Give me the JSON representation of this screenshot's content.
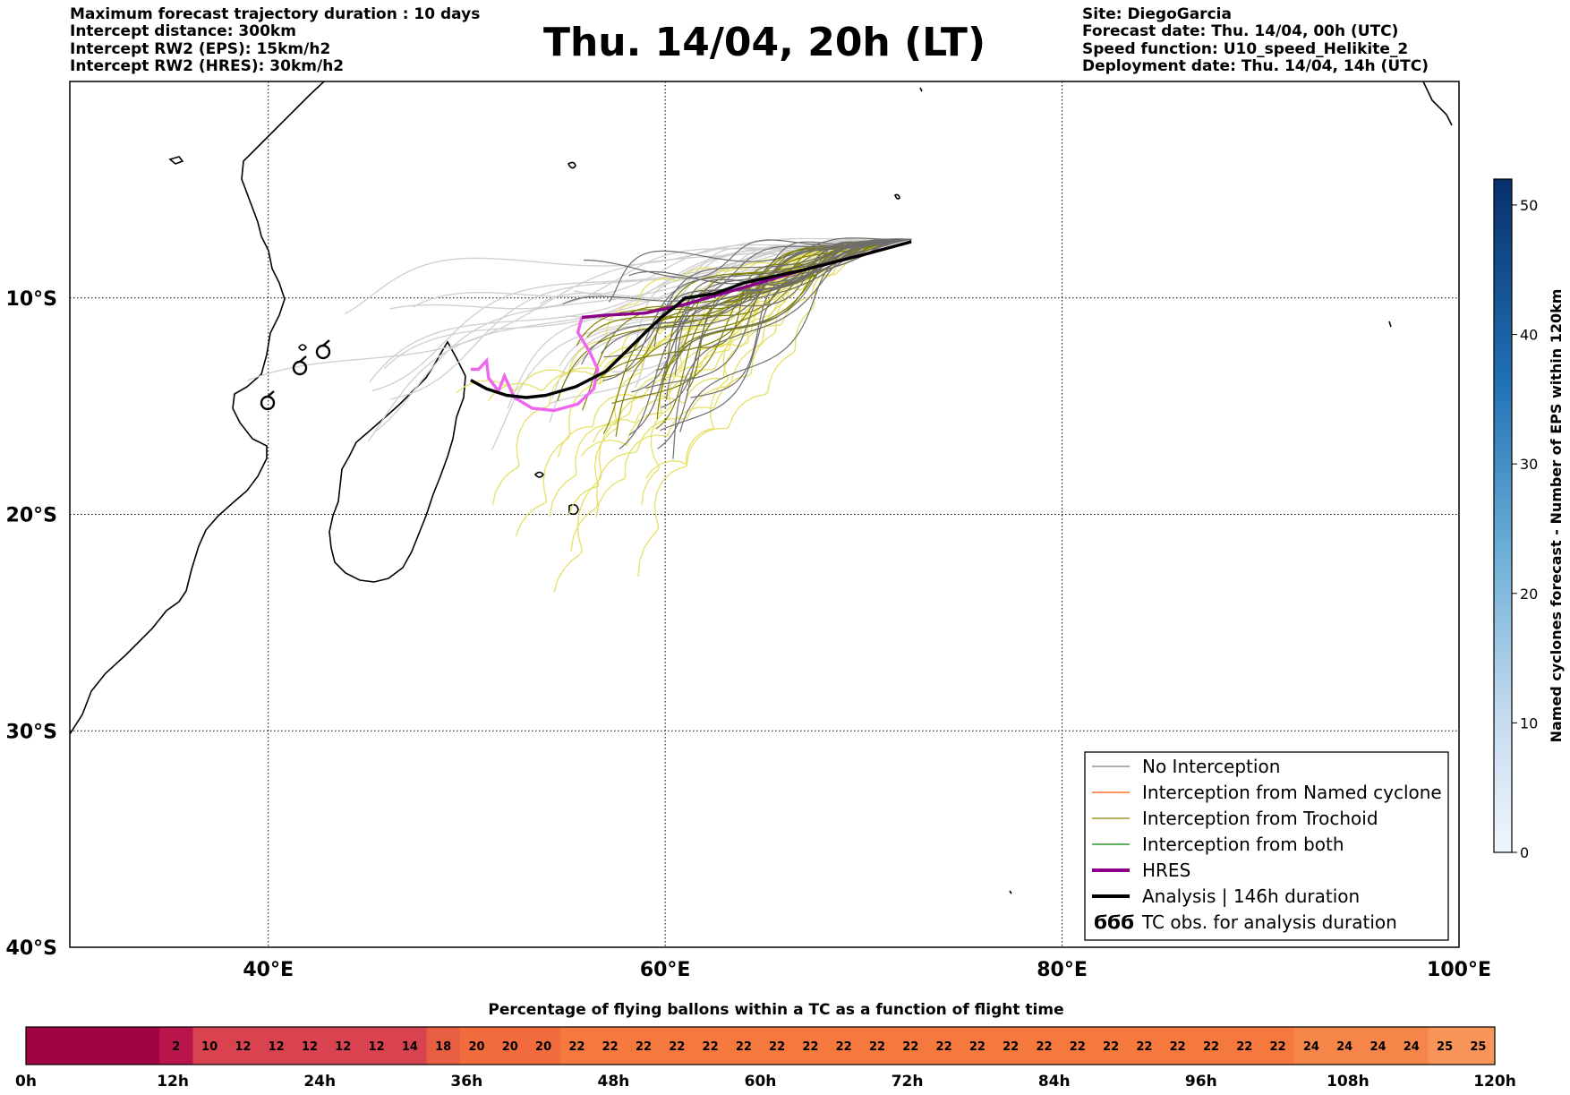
{
  "header_left": [
    "Maximum forecast trajectory duration : 10 days",
    "Intercept distance: 300km",
    "Intercept RW2 (EPS):  15km/h2",
    "Intercept RW2 (HRES): 30km/h2"
  ],
  "header_right": [
    "Site: DiegoGarcia",
    "Forecast date: Thu. 14/04, 00h (UTC)",
    "Speed function: U10_speed_Helikite_2",
    "Deployment date: Thu. 14/04, 14h (UTC)"
  ],
  "title": "Thu. 14/04, 20h (LT)",
  "map": {
    "lon_range": [
      30,
      100
    ],
    "lat_range": [
      -40,
      0
    ],
    "lon_ticks": [
      {
        "v": 40,
        "label": "40°E"
      },
      {
        "v": 60,
        "label": "60°E"
      },
      {
        "v": 80,
        "label": "80°E"
      },
      {
        "v": 100,
        "label": "100°E"
      }
    ],
    "lat_ticks": [
      {
        "v": -10,
        "label": "10°S"
      },
      {
        "v": -20,
        "label": "20°S"
      },
      {
        "v": -30,
        "label": "30°S"
      },
      {
        "v": -40,
        "label": "40°S"
      }
    ],
    "release_site": [
      72.4,
      -7.3
    ]
  },
  "legend": {
    "items": [
      {
        "label": "No Interception",
        "color": "#808080",
        "style": "thin"
      },
      {
        "label": "Interception from Named cyclone",
        "color": "#ff5500",
        "style": "thin"
      },
      {
        "label": "Interception from Trochoid",
        "color": "#808000",
        "style": "thin"
      },
      {
        "label": "Interception from both",
        "color": "#008000",
        "style": "thin"
      },
      {
        "label": "HRES",
        "color": "#8b008b",
        "style": "thick"
      },
      {
        "label": "Analysis | 146h duration",
        "color": "#000000",
        "style": "thick"
      },
      {
        "label": "TC obs. for analysis duration",
        "color": "#000000",
        "style": "symbol",
        "symbol": "ϬϬϬ"
      }
    ]
  },
  "colorbar": {
    "label": "Named cyclones forecast - Number of EPS within 120km",
    "min": 0,
    "max": 52,
    "ticks": [
      0,
      10,
      20,
      30,
      40,
      50
    ],
    "color_low": "#deebf7",
    "color_high": "#08306b"
  },
  "timebar": {
    "title": "Percentage of flying ballons within a TC as a function of flight time",
    "values": [
      0,
      0,
      0,
      0,
      2,
      10,
      12,
      12,
      12,
      12,
      12,
      14,
      18,
      20,
      20,
      20,
      22,
      22,
      22,
      22,
      22,
      22,
      22,
      22,
      22,
      22,
      22,
      22,
      22,
      22,
      22,
      22,
      22,
      22,
      22,
      22,
      22,
      22,
      24,
      24,
      24,
      24,
      25,
      25
    ],
    "tick_labels": [
      "0h",
      "12h",
      "24h",
      "36h",
      "48h",
      "60h",
      "72h",
      "84h",
      "96h",
      "108h",
      "120h"
    ]
  },
  "chart_data": {
    "type": "line",
    "title": "Thu. 14/04, 20h (LT)",
    "xlabel": "",
    "ylabel": "",
    "xlim": [
      30,
      100
    ],
    "ylim": [
      -40,
      0
    ],
    "series": [
      {
        "name": "Analysis | 146h duration",
        "color": "#000000",
        "points": [
          [
            72.4,
            -7.4
          ],
          [
            70,
            -8
          ],
          [
            67,
            -8.7
          ],
          [
            64,
            -9.3
          ],
          [
            62.5,
            -9.8
          ],
          [
            61,
            -10
          ],
          [
            60.5,
            -10.4
          ],
          [
            59.8,
            -10.9
          ],
          [
            59,
            -11.6
          ],
          [
            58,
            -12.5
          ],
          [
            57,
            -13.4
          ],
          [
            55.5,
            -14.1
          ],
          [
            54,
            -14.5
          ],
          [
            53,
            -14.6
          ],
          [
            52,
            -14.5
          ],
          [
            51,
            -14.2
          ],
          [
            50.2,
            -13.8
          ]
        ]
      },
      {
        "name": "HRES",
        "color": "#8b008b",
        "points": [
          [
            72.4,
            -7.4
          ],
          [
            70,
            -8
          ],
          [
            67,
            -8.7
          ],
          [
            64,
            -9.5
          ],
          [
            61,
            -10.3
          ],
          [
            59,
            -10.7
          ],
          [
            57,
            -10.8
          ],
          [
            55.8,
            -10.9
          ]
        ]
      }
    ]
  }
}
